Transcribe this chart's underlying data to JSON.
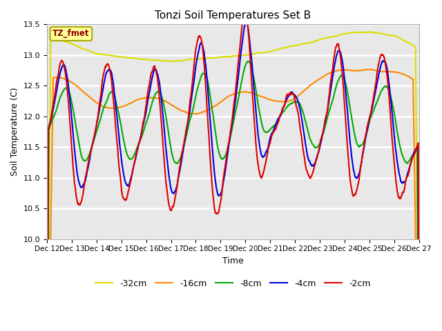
{
  "title": "Tonzi Soil Temperatures Set B",
  "xlabel": "Time",
  "ylabel": "Soil Temperature (C)",
  "annotation": "TZ_fmet",
  "ylim": [
    10.0,
    13.5
  ],
  "legend_labels": [
    "-2cm",
    "-4cm",
    "-8cm",
    "-16cm",
    "-32cm"
  ],
  "line_colors": [
    "#dd0000",
    "#0000dd",
    "#00aa00",
    "#ff8800",
    "#dddd00"
  ],
  "bg_color": "#e8e8e8",
  "tick_dates": [
    "Dec 12",
    "Dec 13",
    "Dec 14",
    "Dec 15",
    "Dec 16",
    "Dec 17",
    "Dec 18",
    "Dec 19",
    "Dec 20",
    "Dec 21",
    "Dec 22",
    "Dec 23",
    "Dec 24",
    "Dec 25",
    "Dec 26",
    "Dec 27"
  ],
  "yticks": [
    10.0,
    10.5,
    11.0,
    11.5,
    12.0,
    12.5,
    13.0,
    13.5
  ]
}
